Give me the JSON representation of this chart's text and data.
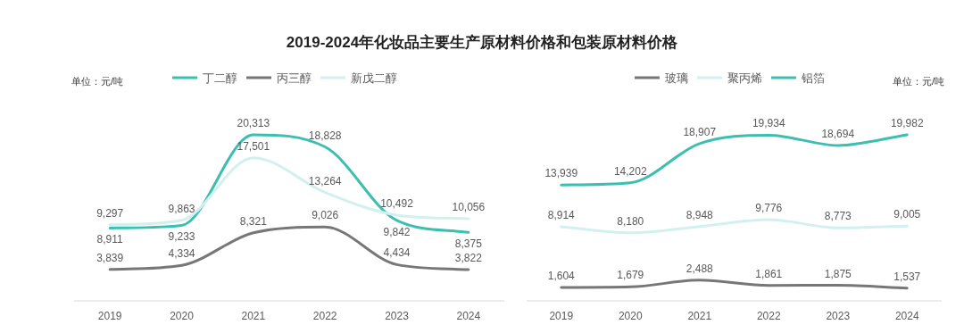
{
  "chart_data": [
    {
      "type": "line",
      "title": "2019-2024年化妆品主要生产原材料价格和包装原材料价格",
      "categories": [
        "2019",
        "2020",
        "2021",
        "2022",
        "2023",
        "2024"
      ],
      "series": [
        {
          "name": "丁二醇",
          "color": "#3dbfb0",
          "values": [
            8911,
            9233,
            20313,
            18828,
            9842,
            8375
          ],
          "value_labels": [
            "8,911",
            "9,233",
            "20,313",
            "18,828",
            "9,842",
            "8,375"
          ]
        },
        {
          "name": "丙三醇",
          "color": "#777777",
          "values": [
            3839,
            4334,
            8321,
            9026,
            4434,
            3822
          ],
          "value_labels": [
            "3,839",
            "4,334",
            "8,321",
            "9,026",
            "4,434",
            "3,822"
          ]
        },
        {
          "name": "新戊二醇",
          "color": "#d2f1ee",
          "values": [
            9297,
            9863,
            17501,
            13264,
            10492,
            10056
          ],
          "value_labels": [
            "9,297",
            "9,863",
            "17,501",
            "13,264",
            "10,492",
            "10,056"
          ]
        }
      ],
      "legend": "top",
      "annotations": [
        "单位：元/吨"
      ]
    },
    {
      "type": "line",
      "categories": [
        "2019",
        "2020",
        "2021",
        "2022",
        "2023",
        "2024"
      ],
      "series": [
        {
          "name": "玻璃",
          "color": "#777777",
          "values": [
            1604,
            1679,
            2488,
            1861,
            1875,
            1537
          ],
          "value_labels": [
            "1,604",
            "1,679",
            "2,488",
            "1,861",
            "1,875",
            "1,537"
          ]
        },
        {
          "name": "聚丙烯",
          "color": "#d2f1ee",
          "values": [
            8914,
            8180,
            8948,
            9776,
            8773,
            9005
          ],
          "value_labels": [
            "8,914",
            "8,180",
            "8,948",
            "9,776",
            "8,773",
            "9,005"
          ]
        },
        {
          "name": "铝箔",
          "color": "#3dbfb0",
          "values": [
            13939,
            14202,
            18907,
            19934,
            18694,
            19982
          ],
          "value_labels": [
            "13,939",
            "14,202",
            "18,907",
            "19,934",
            "18,694",
            "19,982"
          ]
        }
      ],
      "legend": "top",
      "annotations": [
        "单位：元/吨"
      ]
    }
  ]
}
